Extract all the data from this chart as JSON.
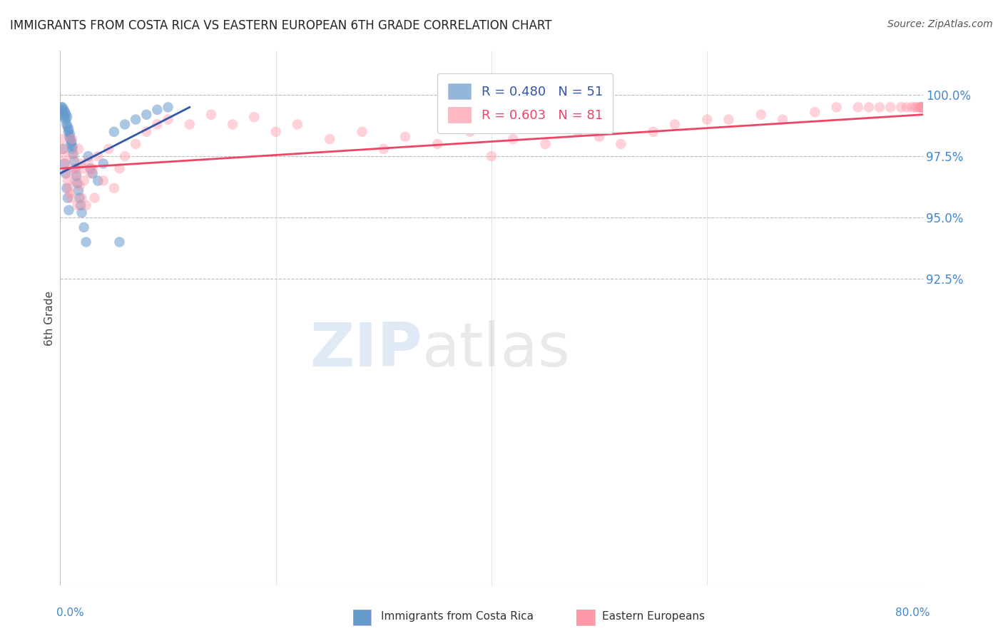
{
  "title": "IMMIGRANTS FROM COSTA RICA VS EASTERN EUROPEAN 6TH GRADE CORRELATION CHART",
  "source": "Source: ZipAtlas.com",
  "ylabel": "6th Grade",
  "blue_R": 0.48,
  "blue_N": 51,
  "pink_R": 0.603,
  "pink_N": 81,
  "blue_color": "#6699CC",
  "pink_color": "#FF99AA",
  "blue_line_color": "#3355AA",
  "pink_line_color": "#EE4466",
  "label_blue": "Immigrants from Costa Rica",
  "label_pink": "Eastern Europeans",
  "watermark_zip": "ZIP",
  "watermark_atlas": "atlas",
  "background_color": "#ffffff",
  "grid_color": "#bbbbbb",
  "axis_label_color": "#4488CC",
  "title_color": "#222222",
  "xlim": [
    0.0,
    80.0
  ],
  "ylim": [
    80.0,
    101.8
  ],
  "yticks": [
    92.5,
    95.0,
    97.5,
    100.0
  ],
  "blue_x": [
    0.1,
    0.15,
    0.2,
    0.25,
    0.3,
    0.35,
    0.4,
    0.45,
    0.5,
    0.55,
    0.6,
    0.65,
    0.7,
    0.75,
    0.8,
    0.85,
    0.9,
    0.95,
    1.0,
    1.05,
    1.1,
    1.15,
    1.2,
    1.3,
    1.4,
    1.5,
    1.6,
    1.7,
    1.8,
    1.9,
    2.0,
    2.2,
    2.4,
    2.6,
    2.8,
    3.0,
    3.5,
    4.0,
    5.0,
    6.0,
    7.0,
    8.0,
    9.0,
    10.0,
    0.3,
    0.4,
    0.5,
    0.6,
    0.7,
    0.8,
    5.5
  ],
  "blue_y": [
    99.5,
    99.4,
    99.5,
    99.3,
    99.2,
    99.4,
    99.1,
    99.3,
    99.0,
    99.2,
    98.8,
    99.1,
    98.7,
    98.5,
    98.6,
    98.3,
    98.4,
    98.2,
    98.0,
    98.1,
    97.8,
    97.9,
    97.6,
    97.3,
    97.0,
    96.7,
    96.4,
    96.1,
    95.8,
    95.5,
    95.2,
    94.6,
    94.0,
    97.5,
    97.0,
    96.8,
    96.5,
    97.2,
    98.5,
    98.8,
    99.0,
    99.2,
    99.4,
    99.5,
    97.8,
    97.2,
    96.8,
    96.2,
    95.8,
    95.3,
    94.0
  ],
  "pink_x": [
    0.2,
    0.3,
    0.4,
    0.5,
    0.6,
    0.7,
    0.8,
    0.9,
    1.0,
    1.1,
    1.2,
    1.3,
    1.4,
    1.5,
    1.6,
    1.7,
    1.8,
    1.9,
    2.0,
    2.1,
    2.2,
    2.4,
    2.6,
    2.8,
    3.0,
    3.2,
    3.5,
    4.0,
    4.5,
    5.0,
    5.5,
    6.0,
    7.0,
    8.0,
    9.0,
    10.0,
    12.0,
    14.0,
    16.0,
    18.0,
    20.0,
    22.0,
    25.0,
    28.0,
    30.0,
    32.0,
    35.0,
    38.0,
    40.0,
    42.0,
    45.0,
    48.0,
    50.0,
    52.0,
    55.0,
    57.0,
    60.0,
    62.0,
    65.0,
    67.0,
    70.0,
    72.0,
    74.0,
    75.0,
    76.0,
    77.0,
    78.0,
    78.5,
    79.0,
    79.3,
    79.5,
    79.7,
    79.8,
    79.85,
    79.9,
    79.93,
    79.96,
    79.98,
    79.99,
    80.0,
    80.0
  ],
  "pink_y": [
    98.2,
    97.8,
    97.5,
    97.2,
    96.8,
    96.5,
    96.2,
    96.0,
    95.8,
    98.2,
    97.5,
    97.0,
    96.5,
    96.8,
    95.5,
    97.8,
    96.3,
    97.2,
    95.8,
    97.0,
    96.5,
    95.5,
    97.3,
    96.8,
    97.0,
    95.8,
    97.5,
    96.5,
    97.8,
    96.2,
    97.0,
    97.5,
    98.0,
    98.5,
    98.8,
    99.0,
    98.8,
    99.2,
    98.8,
    99.1,
    98.5,
    98.8,
    98.2,
    98.5,
    97.8,
    98.3,
    98.0,
    98.5,
    97.5,
    98.2,
    98.0,
    98.5,
    98.3,
    98.0,
    98.5,
    98.8,
    99.0,
    99.0,
    99.2,
    99.0,
    99.3,
    99.5,
    99.5,
    99.5,
    99.5,
    99.5,
    99.5,
    99.5,
    99.5,
    99.5,
    99.5,
    99.5,
    99.5,
    99.5,
    99.5,
    99.5,
    99.5,
    99.5,
    99.5,
    99.5,
    99.5
  ]
}
